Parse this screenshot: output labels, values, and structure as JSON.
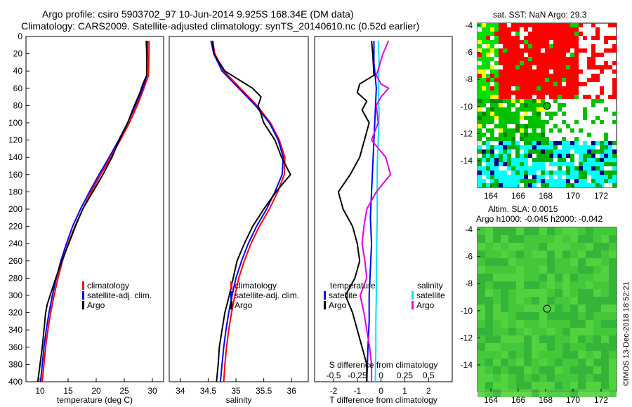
{
  "header": {
    "line1": "Argo profile: csiro 5903702_97 10-Jun-2014 9.925S 168.34E (DM data)",
    "line2": "Climatology: CARS2009. Satellite-adjusted climatology: synTS_20140610.nc (0.52d earlier)"
  },
  "credit": "©IMOS 13-Dec-2018 18:52:21",
  "colors": {
    "climatology": "#ff0000",
    "satellite": "#0000ff",
    "argo": "#000000",
    "sal_satellite": "#00e5ee",
    "sal_argo": "#e000e0"
  },
  "chart_data": [
    {
      "type": "line",
      "id": "temperature",
      "xlabel": "temperature (deg C)",
      "ylabel": "",
      "xlim": [
        7.5,
        32
      ],
      "ylim": [
        0,
        400
      ],
      "xticks": [
        10,
        15,
        20,
        25,
        30
      ],
      "yticks": [
        0,
        20,
        40,
        60,
        80,
        100,
        120,
        140,
        160,
        180,
        200,
        220,
        240,
        260,
        280,
        300,
        320,
        340,
        360,
        380,
        400
      ],
      "legend": [
        "climatology",
        "satellite-adj. clim.",
        "Argo"
      ],
      "series": [
        {
          "name": "climatology",
          "depth": [
            5,
            20,
            45,
            60,
            80,
            100,
            120,
            140,
            160,
            180,
            200,
            220,
            240,
            260,
            280,
            300,
            320,
            340,
            360,
            380,
            400
          ],
          "values": [
            29.4,
            29.4,
            29.3,
            28.5,
            27.3,
            25.9,
            24.3,
            22.6,
            20.8,
            19.1,
            17.6,
            16.2,
            15.0,
            14.0,
            13.2,
            12.5,
            11.9,
            11.4,
            11.0,
            10.7,
            10.4
          ]
        },
        {
          "name": "satellite-adj. clim.",
          "depth": [
            5,
            20,
            45,
            60,
            80,
            100,
            120,
            140,
            160,
            180,
            200,
            220,
            240,
            260,
            280,
            300,
            320,
            340,
            360,
            380,
            400
          ],
          "values": [
            29.1,
            29.1,
            29.0,
            28.3,
            27.0,
            25.6,
            24.0,
            22.3,
            20.5,
            18.8,
            17.2,
            15.8,
            14.7,
            13.7,
            12.9,
            12.2,
            11.6,
            11.1,
            10.7,
            10.4,
            10.1
          ]
        },
        {
          "name": "Argo",
          "depth": [
            5,
            20,
            45,
            55,
            65,
            80,
            100,
            120,
            140,
            160,
            180,
            200,
            220,
            240,
            260,
            280,
            300,
            310,
            320,
            340,
            360,
            380,
            400
          ],
          "values": [
            28.9,
            29.0,
            29.0,
            28.3,
            27.8,
            26.8,
            25.6,
            24.1,
            22.8,
            21.2,
            19.4,
            17.6,
            16.3,
            15.1,
            13.9,
            12.8,
            11.8,
            11.3,
            11.0,
            10.7,
            10.4,
            10.0,
            9.6
          ]
        }
      ]
    },
    {
      "type": "line",
      "id": "salinity",
      "xlabel": "salinity",
      "xlim": [
        33.8,
        36.3
      ],
      "ylim": [
        0,
        400
      ],
      "xticks": [
        34,
        34.5,
        35,
        35.5,
        36
      ],
      "legend": [
        "climatology",
        "satellite-adj. clim.",
        "Argo"
      ],
      "series": [
        {
          "name": "climatology",
          "depth": [
            5,
            20,
            40,
            60,
            80,
            100,
            120,
            140,
            160,
            180,
            200,
            220,
            240,
            260,
            280,
            300,
            320,
            340,
            360,
            380,
            400
          ],
          "values": [
            34.58,
            34.62,
            34.78,
            35.08,
            35.38,
            35.62,
            35.78,
            35.88,
            35.87,
            35.75,
            35.6,
            35.42,
            35.27,
            35.15,
            35.05,
            34.98,
            34.92,
            34.87,
            34.83,
            34.8,
            34.78
          ]
        },
        {
          "name": "satellite-adj. clim.",
          "depth": [
            5,
            20,
            40,
            60,
            80,
            100,
            120,
            140,
            160,
            180,
            200,
            220,
            240,
            260,
            280,
            300,
            320,
            340,
            360,
            380,
            400
          ],
          "values": [
            34.55,
            34.6,
            34.75,
            35.05,
            35.35,
            35.6,
            35.76,
            35.85,
            35.83,
            35.7,
            35.55,
            35.37,
            35.22,
            35.1,
            35.0,
            34.93,
            34.87,
            34.82,
            34.78,
            34.75,
            34.72
          ]
        },
        {
          "name": "Argo",
          "depth": [
            5,
            20,
            40,
            50,
            60,
            70,
            80,
            100,
            120,
            140,
            150,
            160,
            180,
            200,
            220,
            240,
            260,
            280,
            300,
            320,
            340,
            360,
            380,
            400
          ],
          "values": [
            34.58,
            34.6,
            34.8,
            35.05,
            35.3,
            35.45,
            35.4,
            35.5,
            35.7,
            35.82,
            35.9,
            35.98,
            35.72,
            35.5,
            35.3,
            35.15,
            35.02,
            34.95,
            34.88,
            34.8,
            34.75,
            34.7,
            34.68,
            34.65
          ]
        }
      ]
    },
    {
      "type": "line",
      "id": "difference",
      "xlabel": "T difference from climatology",
      "x2label": "S difference from climatology",
      "xlim": [
        -2.8,
        3.0
      ],
      "ylim": [
        0,
        400
      ],
      "xticks": [
        -2,
        -1,
        0,
        1,
        2
      ],
      "x2ticks": [
        "-0.5",
        "-0.25",
        "0",
        "0.25",
        "0.5"
      ],
      "legend_temperature_title": "temperature",
      "legend_salinity_title": "salinity",
      "legend": [
        "satellite",
        "Argo",
        "satellite",
        "Argo"
      ],
      "series": [
        {
          "name": "T satellite",
          "depth": [
            5,
            30,
            60,
            90,
            120,
            150,
            180,
            210,
            240,
            270,
            300,
            330,
            360,
            400
          ],
          "values": [
            -0.3,
            -0.3,
            -0.2,
            -0.25,
            -0.3,
            -0.35,
            -0.4,
            -0.45,
            -0.4,
            -0.45,
            -0.5,
            -0.5,
            -0.55,
            -0.6
          ]
        },
        {
          "name": "T Argo",
          "depth": [
            5,
            20,
            45,
            55,
            65,
            75,
            85,
            100,
            120,
            140,
            160,
            180,
            200,
            220,
            240,
            260,
            280,
            300,
            320,
            340,
            360,
            380,
            400
          ],
          "values": [
            -0.4,
            -0.35,
            -0.3,
            -0.9,
            -1.0,
            -0.6,
            -0.8,
            -0.5,
            -0.7,
            -0.9,
            -1.3,
            -1.8,
            -1.6,
            -1.2,
            -1.0,
            -0.9,
            -1.1,
            -1.5,
            -1.2,
            -1.0,
            -0.8,
            -0.6,
            -0.6
          ]
        },
        {
          "name": "S satellite",
          "depth": [
            5,
            30,
            60,
            90,
            120,
            150,
            180,
            210,
            240,
            270,
            300,
            330,
            360,
            400
          ],
          "values": [
            -0.03,
            -0.02,
            -0.03,
            -0.02,
            -0.03,
            -0.04,
            -0.04,
            -0.04,
            -0.045,
            -0.05,
            -0.05,
            -0.055,
            -0.055,
            -0.06
          ]
        },
        {
          "name": "S Argo",
          "depth": [
            5,
            20,
            35,
            45,
            55,
            60,
            70,
            80,
            100,
            120,
            140,
            160,
            180,
            200,
            220,
            240,
            260,
            280,
            300,
            320,
            340,
            360,
            380,
            400
          ],
          "values": [
            0.08,
            0.02,
            -0.02,
            -0.05,
            0.0,
            0.08,
            0.0,
            -0.05,
            -0.03,
            -0.1,
            0.05,
            0.1,
            -0.05,
            -0.15,
            -0.18,
            -0.2,
            -0.17,
            -0.15,
            -0.22,
            -0.18,
            -0.15,
            -0.12,
            -0.1,
            -0.1
          ]
        }
      ]
    }
  ],
  "maps": [
    {
      "id": "sst",
      "title": "sat. SST: NaN Argo: 29.3",
      "xticks": [
        "164",
        "166",
        "168",
        "170",
        "172"
      ],
      "yticks": [
        "-4",
        "-6",
        "-8",
        "-10",
        "-12",
        "-14"
      ]
    },
    {
      "id": "sla",
      "title1": "Altim. SLA: 0.0015",
      "title2": "Argo h1000: -0.045 h2000: -0.042",
      "xticks": [
        "164",
        "166",
        "168",
        "170",
        "172"
      ],
      "yticks": [
        "-4",
        "-6",
        "-8",
        "-10",
        "-12",
        "-14"
      ]
    }
  ]
}
